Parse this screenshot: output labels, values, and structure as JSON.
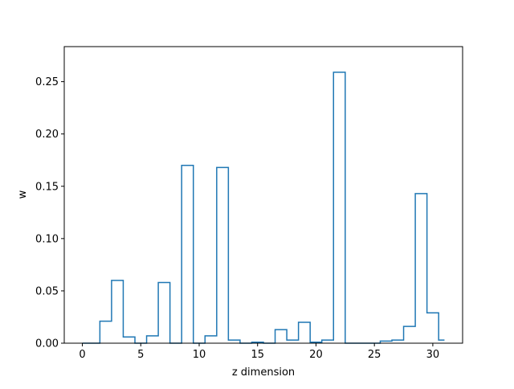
{
  "chart_data": {
    "type": "step",
    "xlabel": "z dimension",
    "ylabel": "w",
    "xlim": [
      -1.55,
      32.55
    ],
    "ylim": [
      0,
      0.2835
    ],
    "x_ticks": [
      0,
      5,
      10,
      15,
      20,
      25,
      30
    ],
    "x_tick_labels": [
      "0",
      "5",
      "10",
      "15",
      "20",
      "25",
      "30"
    ],
    "y_ticks": [
      0.0,
      0.05,
      0.1,
      0.15,
      0.2,
      0.25
    ],
    "y_tick_labels": [
      "0.00",
      "0.05",
      "0.10",
      "0.15",
      "0.20",
      "0.25"
    ],
    "series_color": "#1f77b4",
    "x": [
      0,
      1,
      2,
      3,
      4,
      5,
      6,
      7,
      8,
      9,
      10,
      11,
      12,
      13,
      14,
      15,
      16,
      17,
      18,
      19,
      20,
      21,
      22,
      23,
      24,
      25,
      26,
      27,
      28,
      29,
      30,
      31
    ],
    "values": [
      0.0,
      0.0,
      0.021,
      0.06,
      0.006,
      0.0,
      0.007,
      0.058,
      0.0,
      0.17,
      0.0,
      0.007,
      0.168,
      0.003,
      0.0,
      0.001,
      0.0,
      0.013,
      0.003,
      0.02,
      0.001,
      0.003,
      0.259,
      0.0,
      0.0,
      0.0,
      0.002,
      0.003,
      0.016,
      0.143,
      0.029,
      0.003
    ]
  }
}
